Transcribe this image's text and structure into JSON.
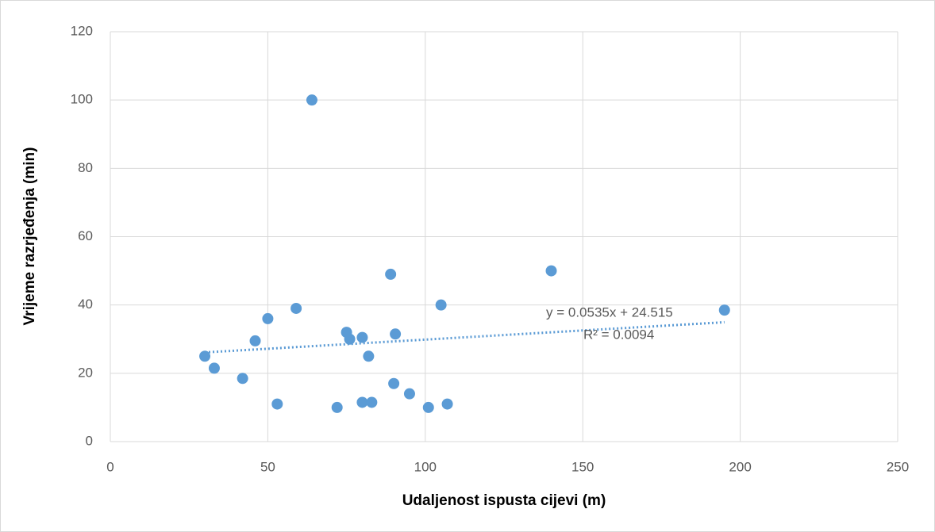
{
  "chart_data": {
    "type": "scatter",
    "x_label": "Udaljenost ispusta cijevi (m)",
    "y_label": "Vrijeme razrjeđenja (min)",
    "color": "#5b9bd5",
    "x": [
      30,
      33,
      42,
      46,
      50,
      53,
      59,
      64,
      72,
      75,
      76,
      80,
      80,
      82,
      83,
      89,
      90,
      90.5,
      95,
      101,
      105,
      107,
      140,
      195
    ],
    "values": [
      25,
      21.5,
      18.5,
      29.5,
      36,
      11,
      39,
      100,
      10,
      32,
      30,
      30.5,
      11.5,
      25,
      11.5,
      49,
      17,
      31.5,
      14,
      10,
      40,
      11,
      50,
      38.5
    ],
    "xlim": [
      0,
      250
    ],
    "xticks": [
      0,
      50,
      100,
      150,
      200,
      250
    ],
    "ylim": [
      0,
      120
    ],
    "yticks": [
      0,
      20,
      40,
      60,
      80,
      100,
      120
    ],
    "grid": true,
    "trendline": {
      "slope": 0.0535,
      "intercept": 24.515,
      "equation": "y = 0.0535x + 24.515",
      "r_squared": "R² = 0.0094"
    }
  }
}
